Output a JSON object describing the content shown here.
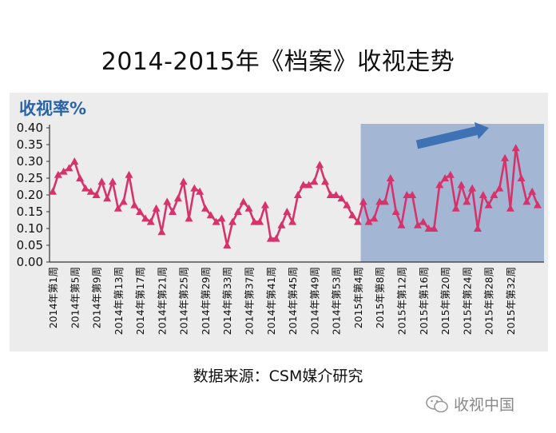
{
  "title": "2014-2015年《档案》收视走势",
  "source": "数据来源：CSM媒介研究",
  "watermark": "收视中国",
  "colors": {
    "line": "#d6336c",
    "highlight": "#9fb4d4",
    "arrow": "#3f72b4",
    "axis": "#333333",
    "panel": "#ececec"
  },
  "chart_data": {
    "type": "line",
    "ylabel": "收视率%",
    "ylim": [
      0,
      0.4
    ],
    "yticks": [
      "0.40",
      "0.35",
      "0.30",
      "0.25",
      "0.20",
      "0.15",
      "0.10",
      "0.05",
      "0.00"
    ],
    "xtick_labels": [
      "2014年第1周",
      "2014年第5周",
      "2014年第9周",
      "2014年第13周",
      "2014年第17周",
      "2014年第21周",
      "2014年第25周",
      "2014年第29周",
      "2014年第33周",
      "2014年第37周",
      "2014年第41周",
      "2014年第45周",
      "2014年第49周",
      "2014年第53周",
      "2015年第4周",
      "2015年第8周",
      "2015年第12周",
      "2015年第16周",
      "2015年第20周",
      "2015年第24周",
      "2015年第28周",
      "2015年第32周"
    ],
    "highlight_range": [
      "2014年第53周",
      "2015年第34周"
    ],
    "series": [
      {
        "values": [
          0.21,
          0.26,
          0.27,
          0.28,
          0.3,
          0.25,
          0.22,
          0.21,
          0.2,
          0.24,
          0.19,
          0.24,
          0.16,
          0.18,
          0.26,
          0.17,
          0.15,
          0.13,
          0.12,
          0.16,
          0.09,
          0.18,
          0.15,
          0.19,
          0.24,
          0.13,
          0.22,
          0.21,
          0.16,
          0.14,
          0.12,
          0.13,
          0.05,
          0.12,
          0.15,
          0.18,
          0.16,
          0.12,
          0.12,
          0.17,
          0.07,
          0.07,
          0.11,
          0.15,
          0.12,
          0.2,
          0.23,
          0.23,
          0.24,
          0.29,
          0.24,
          0.2,
          0.2,
          0.19,
          0.17,
          0.14,
          0.12,
          0.18,
          0.12,
          0.13,
          0.18,
          0.18,
          0.25,
          0.15,
          0.11,
          0.2,
          0.2,
          0.11,
          0.12,
          0.1,
          0.1,
          0.23,
          0.25,
          0.26,
          0.16,
          0.23,
          0.18,
          0.22,
          0.1,
          0.2,
          0.17,
          0.2,
          0.22,
          0.31,
          0.16,
          0.34,
          0.25,
          0.18,
          0.21,
          0.17
        ]
      }
    ]
  }
}
